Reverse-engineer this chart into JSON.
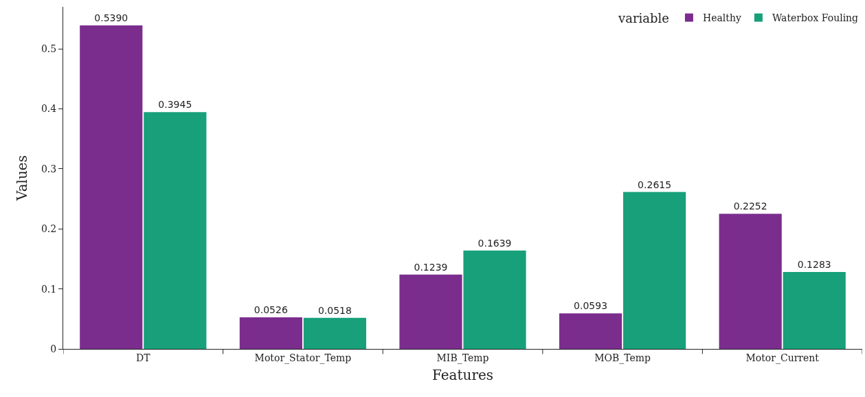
{
  "chart_data": {
    "type": "bar",
    "xlabel": "Features",
    "ylabel": "Values",
    "legend_title": "variable",
    "categories": [
      "DT",
      "Motor_Stator_Temp",
      "MIB_Temp",
      "MOB_Temp",
      "Motor_Current"
    ],
    "series": [
      {
        "name": "Healthy",
        "color": "#7b2d8e",
        "values": [
          0.539,
          0.0526,
          0.1239,
          0.0593,
          0.2252
        ]
      },
      {
        "name": "Waterbox Fouling",
        "color": "#17a07a",
        "values": [
          0.3945,
          0.0518,
          0.1639,
          0.2615,
          0.1283
        ]
      }
    ],
    "value_labels": [
      [
        "0.5390",
        "0.0526",
        "0.1239",
        "0.0593",
        "0.2252"
      ],
      [
        "0.3945",
        "0.0518",
        "0.1639",
        "0.2615",
        "0.1283"
      ]
    ],
    "ylim": [
      0,
      0.57
    ],
    "yticks": [
      0,
      0.1,
      0.2,
      0.3,
      0.4,
      0.5
    ],
    "grid": false,
    "legend": "top right"
  }
}
